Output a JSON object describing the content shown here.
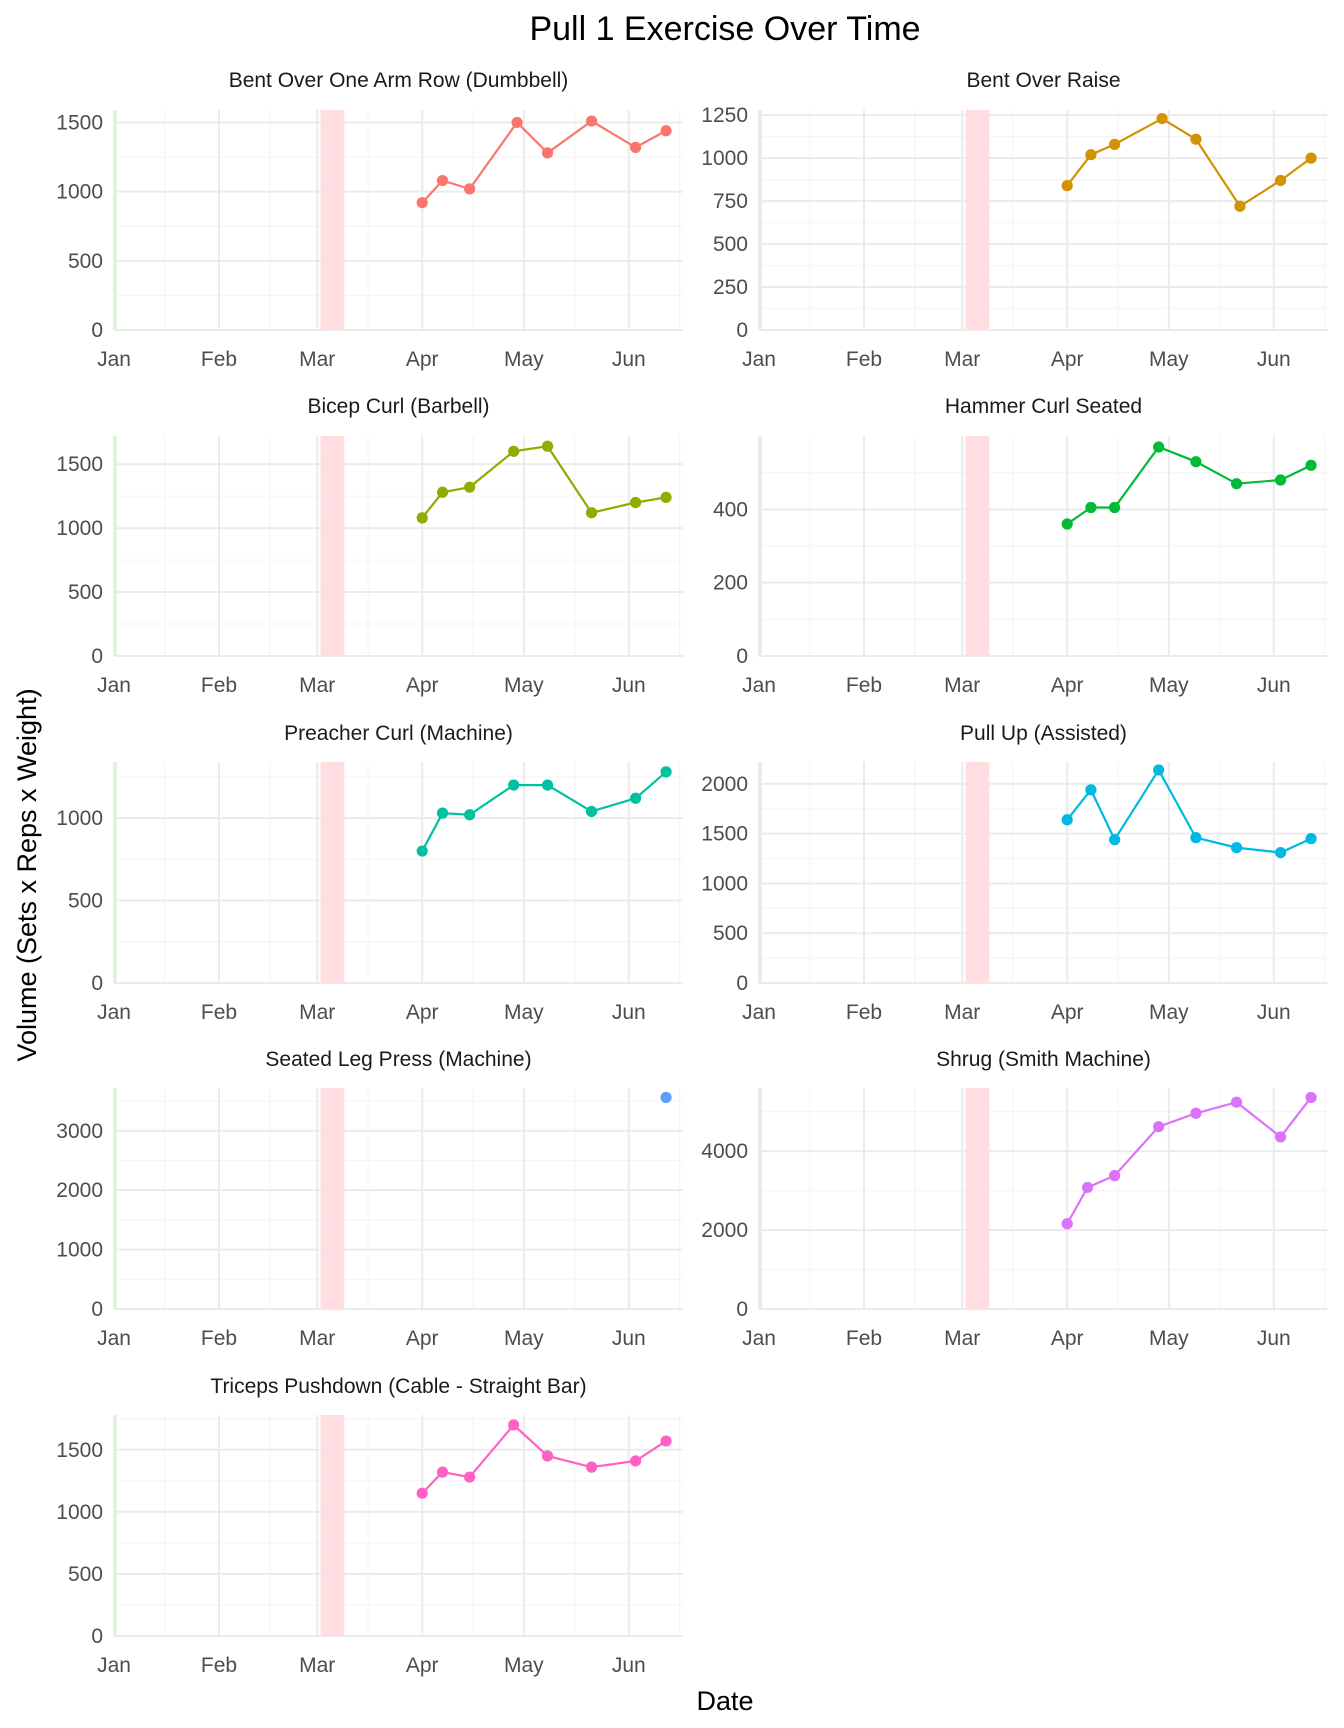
{
  "title": "Pull 1  Exercise Over Time",
  "xlabel": "Date",
  "ylabel": "Volume (Sets x Reps x Weight)",
  "colors": {
    "grid_major": "#ebebeb",
    "grid_minor": "#f5f5f5",
    "band_green": "#dff3dd",
    "band_red": "#ffdde0"
  },
  "chart_data": [
    {
      "type": "line",
      "title": "Bent Over One Arm Row (Dumbbell)",
      "color": "#F8766D",
      "x_ticks": [
        "Jan",
        "Feb",
        "Mar",
        "Apr",
        "May",
        "Jun"
      ],
      "y_ticks": [
        0,
        500,
        1000,
        1500
      ],
      "ylim": [
        0,
        1590
      ],
      "x": [
        "2024-04-01",
        "2024-04-07",
        "2024-04-15",
        "2024-04-29",
        "2024-05-08",
        "2024-05-21",
        "2024-06-03",
        "2024-06-12"
      ],
      "values": [
        920,
        1080,
        1020,
        1500,
        1280,
        1510,
        1320,
        1440
      ]
    },
    {
      "type": "line",
      "title": "Bent Over Raise",
      "color": "#D39200",
      "x_ticks": [
        "Jan",
        "Feb",
        "Mar",
        "Apr",
        "May",
        "Jun"
      ],
      "y_ticks": [
        0,
        250,
        500,
        750,
        1000,
        1250
      ],
      "ylim": [
        0,
        1280
      ],
      "x": [
        "2024-04-01",
        "2024-04-08",
        "2024-04-15",
        "2024-04-29",
        "2024-05-09",
        "2024-05-22",
        "2024-06-03",
        "2024-06-12"
      ],
      "values": [
        840,
        1020,
        1080,
        1230,
        1110,
        720,
        870,
        1000
      ]
    },
    {
      "type": "line",
      "title": "Bicep Curl (Barbell)",
      "color": "#93AA00",
      "x_ticks": [
        "Jan",
        "Feb",
        "Mar",
        "Apr",
        "May",
        "Jun"
      ],
      "y_ticks": [
        0,
        500,
        1000,
        1500
      ],
      "ylim": [
        0,
        1720
      ],
      "x": [
        "2024-04-01",
        "2024-04-07",
        "2024-04-15",
        "2024-04-28",
        "2024-05-08",
        "2024-05-21",
        "2024-06-03",
        "2024-06-12"
      ],
      "values": [
        1080,
        1280,
        1320,
        1600,
        1640,
        1120,
        1200,
        1240
      ]
    },
    {
      "type": "line",
      "title": "Hammer Curl Seated",
      "color": "#00BA38",
      "x_ticks": [
        "Jan",
        "Feb",
        "Mar",
        "Apr",
        "May",
        "Jun"
      ],
      "y_ticks": [
        0,
        200,
        400
      ],
      "ylim": [
        0,
        600
      ],
      "x": [
        "2024-04-01",
        "2024-04-08",
        "2024-04-15",
        "2024-04-28",
        "2024-05-09",
        "2024-05-21",
        "2024-06-03",
        "2024-06-12"
      ],
      "values": [
        360,
        405,
        405,
        570,
        530,
        470,
        480,
        520
      ]
    },
    {
      "type": "line",
      "title": "Preacher Curl (Machine)",
      "color": "#00C19F",
      "x_ticks": [
        "Jan",
        "Feb",
        "Mar",
        "Apr",
        "May",
        "Jun"
      ],
      "y_ticks": [
        0,
        500,
        1000
      ],
      "ylim": [
        0,
        1340
      ],
      "x": [
        "2024-04-01",
        "2024-04-07",
        "2024-04-15",
        "2024-04-28",
        "2024-05-08",
        "2024-05-21",
        "2024-06-03",
        "2024-06-12"
      ],
      "values": [
        800,
        1030,
        1020,
        1200,
        1200,
        1040,
        1120,
        1280
      ]
    },
    {
      "type": "line",
      "title": "Pull Up (Assisted)",
      "color": "#00B9E3",
      "x_ticks": [
        "Jan",
        "Feb",
        "Mar",
        "Apr",
        "May",
        "Jun"
      ],
      "y_ticks": [
        0,
        500,
        1000,
        1500,
        2000
      ],
      "ylim": [
        0,
        2220
      ],
      "x": [
        "2024-04-01",
        "2024-04-08",
        "2024-04-15",
        "2024-04-28",
        "2024-05-09",
        "2024-05-21",
        "2024-06-03",
        "2024-06-12"
      ],
      "values": [
        1640,
        1940,
        1440,
        2140,
        1460,
        1360,
        1310,
        1450
      ]
    },
    {
      "type": "scatter",
      "title": "Seated Leg Press (Machine)",
      "color": "#619CFF",
      "x_ticks": [
        "Jan",
        "Feb",
        "Mar",
        "Apr",
        "May",
        "Jun"
      ],
      "y_ticks": [
        0,
        1000,
        2000,
        3000
      ],
      "ylim": [
        0,
        3720
      ],
      "x": [
        "2024-06-12"
      ],
      "values": [
        3560
      ]
    },
    {
      "type": "line",
      "title": "Shrug (Smith Machine)",
      "color": "#DB72FB",
      "x_ticks": [
        "Jan",
        "Feb",
        "Mar",
        "Apr",
        "May",
        "Jun"
      ],
      "y_ticks": [
        0,
        2000,
        4000
      ],
      "ylim": [
        0,
        5600
      ],
      "x": [
        "2024-04-01",
        "2024-04-07",
        "2024-04-15",
        "2024-04-28",
        "2024-05-09",
        "2024-05-21",
        "2024-06-03",
        "2024-06-12"
      ],
      "values": [
        2160,
        3080,
        3380,
        4620,
        4960,
        5240,
        4360,
        5360
      ]
    },
    {
      "type": "line",
      "title": "Triceps Pushdown (Cable - Straight Bar)",
      "color": "#FF61C3",
      "x_ticks": [
        "Jan",
        "Feb",
        "Mar",
        "Apr",
        "May",
        "Jun"
      ],
      "y_ticks": [
        0,
        500,
        1000,
        1500
      ],
      "ylim": [
        0,
        1780
      ],
      "x": [
        "2024-04-01",
        "2024-04-07",
        "2024-04-15",
        "2024-04-28",
        "2024-05-08",
        "2024-05-21",
        "2024-06-03",
        "2024-06-12"
      ],
      "values": [
        1150,
        1320,
        1280,
        1700,
        1450,
        1360,
        1410,
        1570
      ]
    }
  ]
}
